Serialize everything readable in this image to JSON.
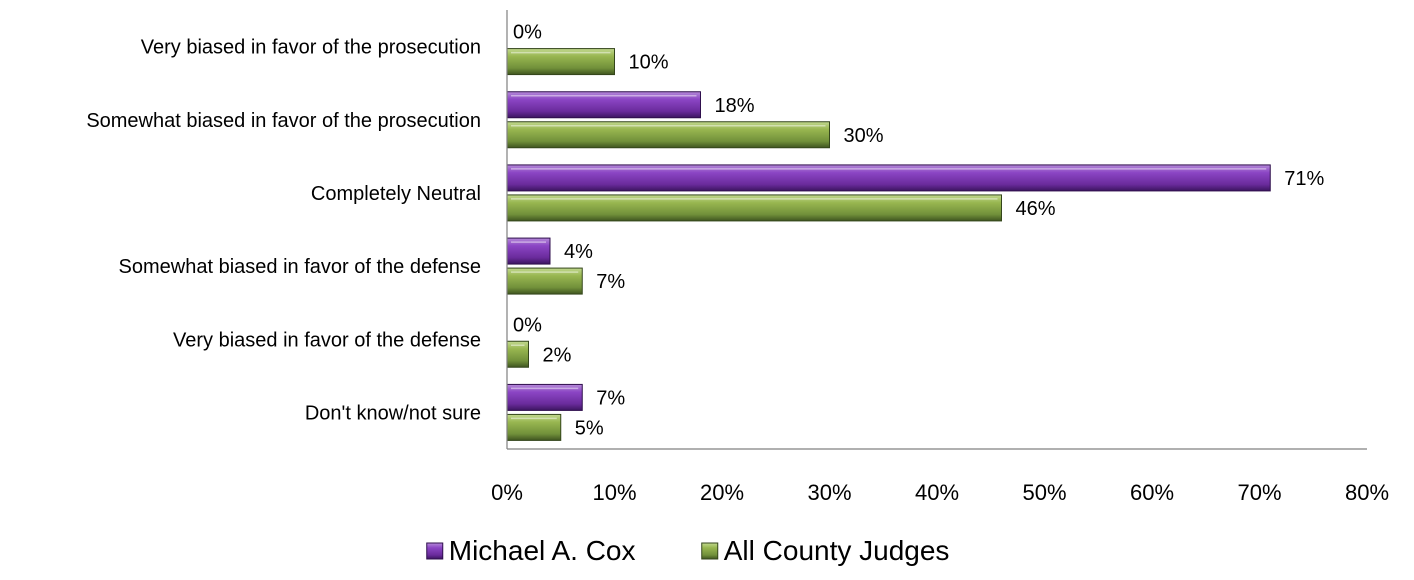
{
  "chart_data": {
    "type": "bar",
    "orientation": "horizontal",
    "categories": [
      "Very biased in favor of the prosecution",
      "Somewhat biased in favor of the prosecution",
      "Completely Neutral",
      "Somewhat biased in favor of the defense",
      "Very biased in favor of the defense",
      "Don't know/not sure"
    ],
    "series": [
      {
        "name": "Michael A. Cox",
        "color": "#7030A0",
        "values": [
          0,
          18,
          71,
          4,
          0,
          7
        ],
        "labels": [
          "0%",
          "18%",
          "71%",
          "4%",
          "0%",
          "7%"
        ]
      },
      {
        "name": "All County Judges",
        "color": "#77933C",
        "values": [
          10,
          30,
          46,
          7,
          2,
          5
        ],
        "labels": [
          "10%",
          "30%",
          "46%",
          "7%",
          "2%",
          "5%"
        ]
      }
    ],
    "xlim": [
      0,
      80
    ],
    "xticks": [
      "0%",
      "10%",
      "20%",
      "30%",
      "40%",
      "50%",
      "60%",
      "70%",
      "80%"
    ],
    "legend_position": "bottom",
    "grid": false
  }
}
